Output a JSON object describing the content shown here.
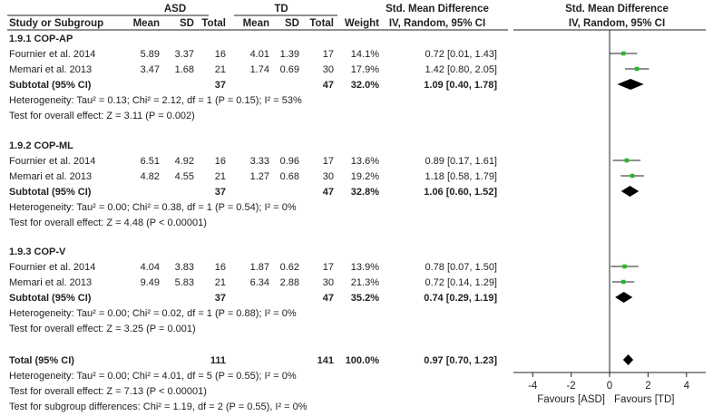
{
  "chart_data": {
    "type": "forest",
    "headers": {
      "group_asd": "ASD",
      "group_td": "TD",
      "study": "Study or Subgroup",
      "mean": "Mean",
      "sd": "SD",
      "total": "Total",
      "weight": "Weight",
      "smd_title": "Std. Mean Difference",
      "smd_method": "IV, Random, 95% CI",
      "plot_title": "Std. Mean Difference",
      "plot_method": "IV, Random, 95% CI"
    },
    "subgroups": [
      {
        "title": "1.9.1 COP-AP",
        "studies": [
          {
            "name": "Fournier et al. 2014",
            "asd_mean": "5.89",
            "asd_sd": "3.37",
            "asd_total": "16",
            "td_mean": "4.01",
            "td_sd": "1.39",
            "td_total": "17",
            "weight": "14.1%",
            "ci_text": "0.72 [0.01, 1.43]",
            "est": 0.72,
            "lo": 0.01,
            "hi": 1.43
          },
          {
            "name": "Memari et al. 2013",
            "asd_mean": "3.47",
            "asd_sd": "1.68",
            "asd_total": "21",
            "td_mean": "1.74",
            "td_sd": "0.69",
            "td_total": "30",
            "weight": "17.9%",
            "ci_text": "1.42 [0.80, 2.05]",
            "est": 1.42,
            "lo": 0.8,
            "hi": 2.05
          }
        ],
        "subtotal": {
          "label": "Subtotal (95% CI)",
          "asd_total": "37",
          "td_total": "47",
          "weight": "32.0%",
          "ci_text": "1.09 [0.40, 1.78]",
          "est": 1.09,
          "lo": 0.4,
          "hi": 1.78
        },
        "heterogeneity": "Heterogeneity: Tau² = 0.13; Chi² = 2.12, df = 1 (P = 0.15); I² = 53%",
        "overall_effect": "Test for overall effect: Z = 3.11 (P = 0.002)"
      },
      {
        "title": "1.9.2 COP-ML",
        "studies": [
          {
            "name": "Fournier et al. 2014",
            "asd_mean": "6.51",
            "asd_sd": "4.92",
            "asd_total": "16",
            "td_mean": "3.33",
            "td_sd": "0.96",
            "td_total": "17",
            "weight": "13.6%",
            "ci_text": "0.89 [0.17, 1.61]",
            "est": 0.89,
            "lo": 0.17,
            "hi": 1.61
          },
          {
            "name": "Memari et al. 2013",
            "asd_mean": "4.82",
            "asd_sd": "4.55",
            "asd_total": "21",
            "td_mean": "1.27",
            "td_sd": "0.68",
            "td_total": "30",
            "weight": "19.2%",
            "ci_text": "1.18 [0.58, 1.79]",
            "est": 1.18,
            "lo": 0.58,
            "hi": 1.79
          }
        ],
        "subtotal": {
          "label": "Subtotal (95% CI)",
          "asd_total": "37",
          "td_total": "47",
          "weight": "32.8%",
          "ci_text": "1.06 [0.60, 1.52]",
          "est": 1.06,
          "lo": 0.6,
          "hi": 1.52
        },
        "heterogeneity": "Heterogeneity: Tau² = 0.00; Chi² = 0.38, df = 1 (P = 0.54); I² = 0%",
        "overall_effect": "Test for overall effect: Z = 4.48 (P < 0.00001)"
      },
      {
        "title": "1.9.3 COP-V",
        "studies": [
          {
            "name": "Fournier et al. 2014",
            "asd_mean": "4.04",
            "asd_sd": "3.83",
            "asd_total": "16",
            "td_mean": "1.87",
            "td_sd": "0.62",
            "td_total": "17",
            "weight": "13.9%",
            "ci_text": "0.78 [0.07, 1.50]",
            "est": 0.78,
            "lo": 0.07,
            "hi": 1.5
          },
          {
            "name": "Memari et al. 2013",
            "asd_mean": "9.49",
            "asd_sd": "5.83",
            "asd_total": "21",
            "td_mean": "6.34",
            "td_sd": "2.88",
            "td_total": "30",
            "weight": "21.3%",
            "ci_text": "0.72 [0.14, 1.29]",
            "est": 0.72,
            "lo": 0.14,
            "hi": 1.29
          }
        ],
        "subtotal": {
          "label": "Subtotal (95% CI)",
          "asd_total": "37",
          "td_total": "47",
          "weight": "35.2%",
          "ci_text": "0.74 [0.29, 1.19]",
          "est": 0.74,
          "lo": 0.29,
          "hi": 1.19
        },
        "heterogeneity": "Heterogeneity: Tau² = 0.00; Chi² = 0.02, df = 1 (P = 0.88); I² = 0%",
        "overall_effect": "Test for overall effect: Z = 3.25 (P = 0.001)"
      }
    ],
    "total": {
      "label": "Total (95% CI)",
      "asd_total": "111",
      "td_total": "141",
      "weight": "100.0%",
      "ci_text": "0.97 [0.70, 1.23]",
      "est": 0.97,
      "lo": 0.7,
      "hi": 1.23
    },
    "footer": [
      "Heterogeneity: Tau² = 0.00; Chi² = 4.01, df = 5 (P = 0.55); I² = 0%",
      "Test for overall effect: Z = 7.13 (P < 0.00001)",
      "Test for subgroup differences: Chi² = 1.19, df = 2 (P = 0.55), I² = 0%"
    ],
    "axis": {
      "range": [
        -5,
        5
      ],
      "ticks": [
        -4,
        -2,
        0,
        2,
        4
      ],
      "tick_labels": [
        "-4",
        "-2",
        "0",
        "2",
        "4"
      ],
      "favours_left": "Favours [ASD]",
      "favours_right": "Favours [TD]"
    },
    "colors": {
      "study_marker": "#22bb22",
      "diamond": "#000000",
      "line": "#222222"
    }
  }
}
